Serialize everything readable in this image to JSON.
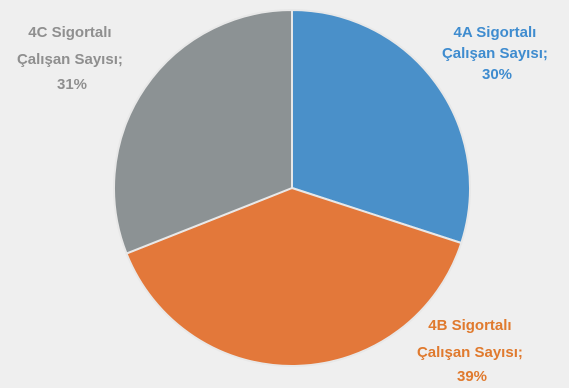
{
  "chart_data": {
    "type": "pie",
    "slices": [
      {
        "label": "4A Sigortalı Çalışan Sayısı;",
        "percent": "30%",
        "value": 30,
        "color": "#4a90c9"
      },
      {
        "label": "4B Sigortalı Çalışan Sayısı;",
        "percent": "39%",
        "value": 39,
        "color": "#e3783a"
      },
      {
        "label": "4C Sigortalı Çalışan Sayısı;",
        "percent": "31%",
        "value": 31,
        "color": "#8c9294"
      }
    ],
    "label_lines": [
      [
        "4A Sigortalı",
        "Çalışan Sayısı;",
        "30%"
      ],
      [
        "4B Sigortalı",
        "Çalışan Sayısı;",
        "39%"
      ],
      [
        "4C Sigortalı",
        "Çalışan Sayısı;",
        "31%"
      ]
    ],
    "label_colors": [
      "#3f8ccf",
      "#e07a2e",
      "#8f8f8f"
    ],
    "start_angle": "12 o'clock, clockwise",
    "legend": "none"
  }
}
